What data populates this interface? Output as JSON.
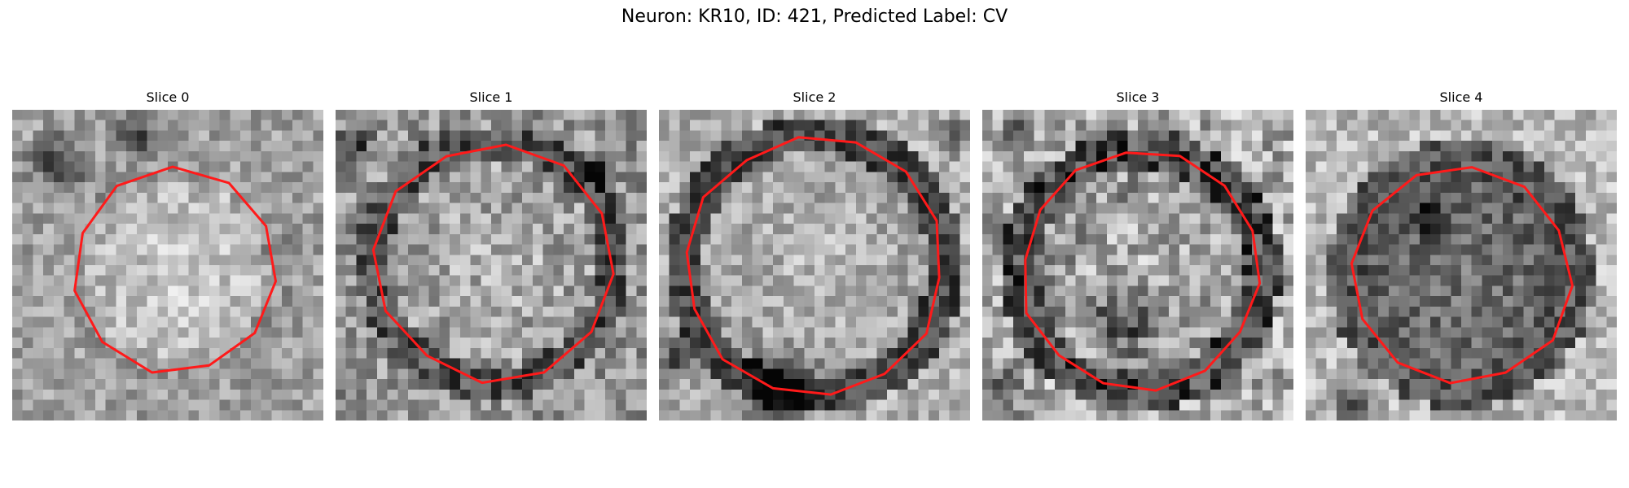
{
  "figure": {
    "title": "Neuron: KR10, ID: 421, Predicted Label: CV"
  },
  "panels": [
    {
      "title": "Slice 0"
    },
    {
      "title": "Slice 1"
    },
    {
      "title": "Slice 2"
    },
    {
      "title": "Slice 3"
    },
    {
      "title": "Slice 4"
    }
  ],
  "colors": {
    "contour": "#ff1a1a",
    "background": "#ffffff"
  }
}
